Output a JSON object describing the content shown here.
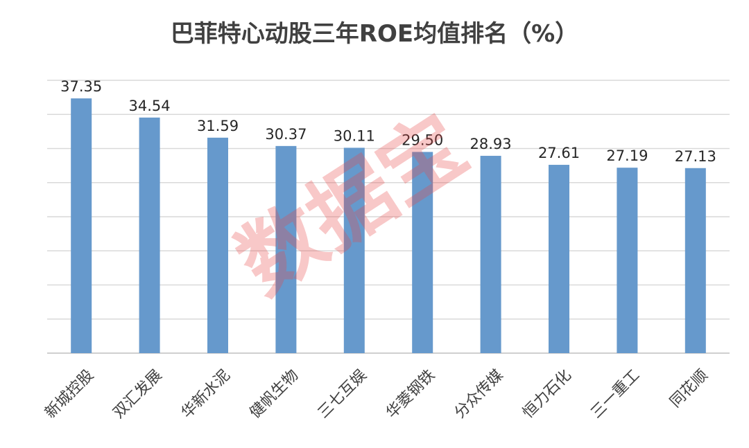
{
  "chart_data": {
    "type": "bar",
    "title": "巴菲特心动股三年ROE均值排名（%）",
    "categories": [
      "新城控股",
      "双汇发展",
      "华新水泥",
      "健帆生物",
      "三七互娱",
      "华菱钢铁",
      "分众传媒",
      "恒力石化",
      "三一重工",
      "同花顺"
    ],
    "values": [
      37.35,
      34.54,
      31.59,
      30.37,
      30.11,
      29.5,
      28.93,
      27.61,
      27.19,
      27.13
    ],
    "value_labels": [
      "37.35",
      "34.54",
      "31.59",
      "30.37",
      "30.11",
      "29.50",
      "28.93",
      "27.61",
      "27.19",
      "27.13"
    ],
    "ylim": [
      0,
      40
    ],
    "gridlines": [
      5,
      10,
      15,
      20,
      25,
      30,
      35,
      40
    ],
    "grid": true,
    "bar_color": "#6699cc",
    "watermark": "数据宝",
    "watermark_color": "#e84a4a"
  }
}
